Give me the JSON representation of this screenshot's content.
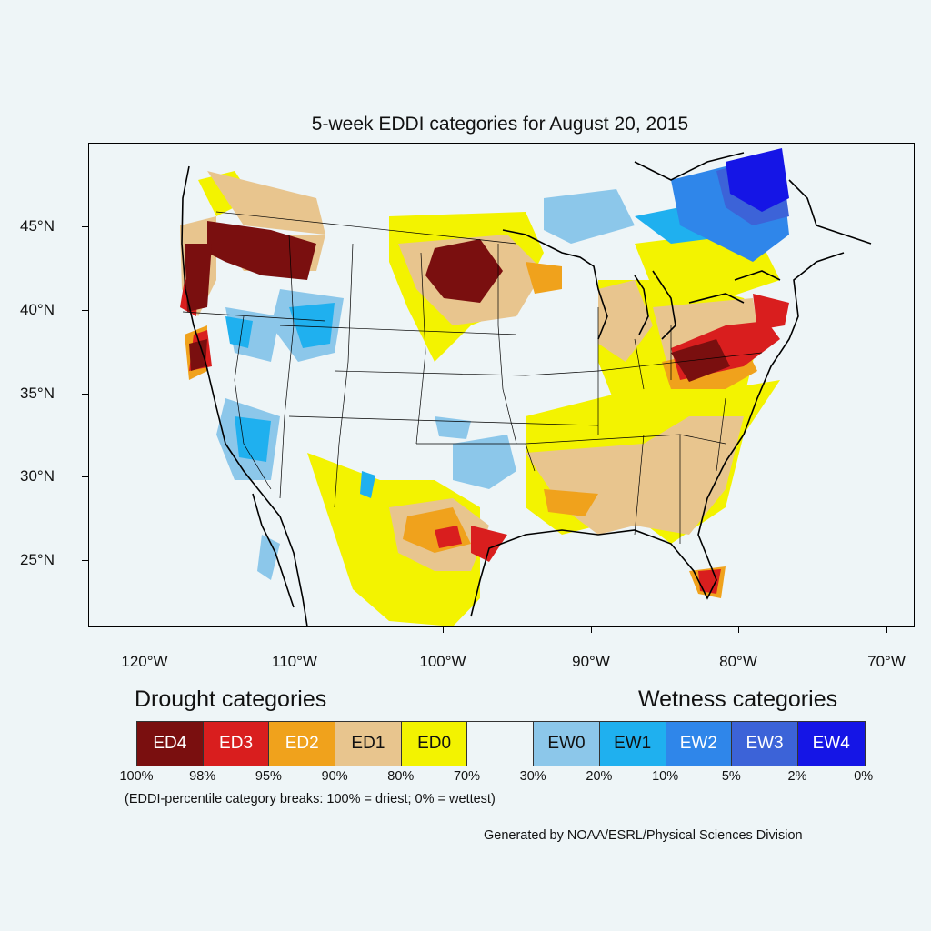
{
  "title": "5-week EDDI categories for August 20, 2015",
  "axes": {
    "lat_labels": [
      "45°N",
      "40°N",
      "35°N",
      "30°N",
      "25°N"
    ],
    "lon_labels": [
      "120°W",
      "110°W",
      "100°W",
      "90°W",
      "80°W",
      "70°W"
    ]
  },
  "legend": {
    "drought_heading": "Drought categories",
    "wetness_heading": "Wetness categories",
    "categories": [
      {
        "label": "ED4",
        "color": "#7a0f0f",
        "text_color": "#ffffff"
      },
      {
        "label": "ED3",
        "color": "#d91e1e",
        "text_color": "#ffffff"
      },
      {
        "label": "ED2",
        "color": "#f0a21c",
        "text_color": "#ffffff"
      },
      {
        "label": "ED1",
        "color": "#e8c58e",
        "text_color": "#111111"
      },
      {
        "label": "ED0",
        "color": "#f3f300",
        "text_color": "#111111"
      },
      {
        "label": "",
        "color": "#eef5f7",
        "text_color": "#111111"
      },
      {
        "label": "EW0",
        "color": "#8cc7ea",
        "text_color": "#111111"
      },
      {
        "label": "EW1",
        "color": "#1fb0ef",
        "text_color": "#111111"
      },
      {
        "label": "EW2",
        "color": "#2f86ea",
        "text_color": "#ffffff"
      },
      {
        "label": "EW3",
        "color": "#3c63d8",
        "text_color": "#ffffff"
      },
      {
        "label": "EW4",
        "color": "#1515e6",
        "text_color": "#ffffff"
      }
    ],
    "percentiles": [
      "100%",
      "98%",
      "95%",
      "90%",
      "80%",
      "70%",
      "30%",
      "20%",
      "10%",
      "5%",
      "2%",
      "0%"
    ],
    "note": "(EDDI-percentile category breaks: 100% = driest; 0% = wettest)"
  },
  "credit": "Generated by NOAA/ESRL/Physical Sciences Division"
}
